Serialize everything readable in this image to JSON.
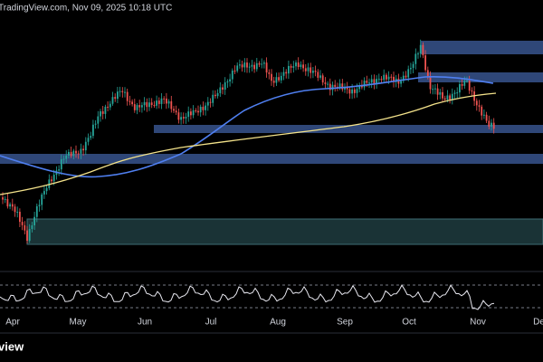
{
  "header": {
    "watermark": "TradingView.com, Nov 09, 2025 10:18 UTC"
  },
  "x_axis": {
    "labels": [
      "Apr",
      "May",
      "Jun",
      "Jul",
      "Aug",
      "Sep",
      "Oct",
      "Nov",
      "Dec"
    ]
  },
  "footer": {
    "logo": "view"
  }
}
